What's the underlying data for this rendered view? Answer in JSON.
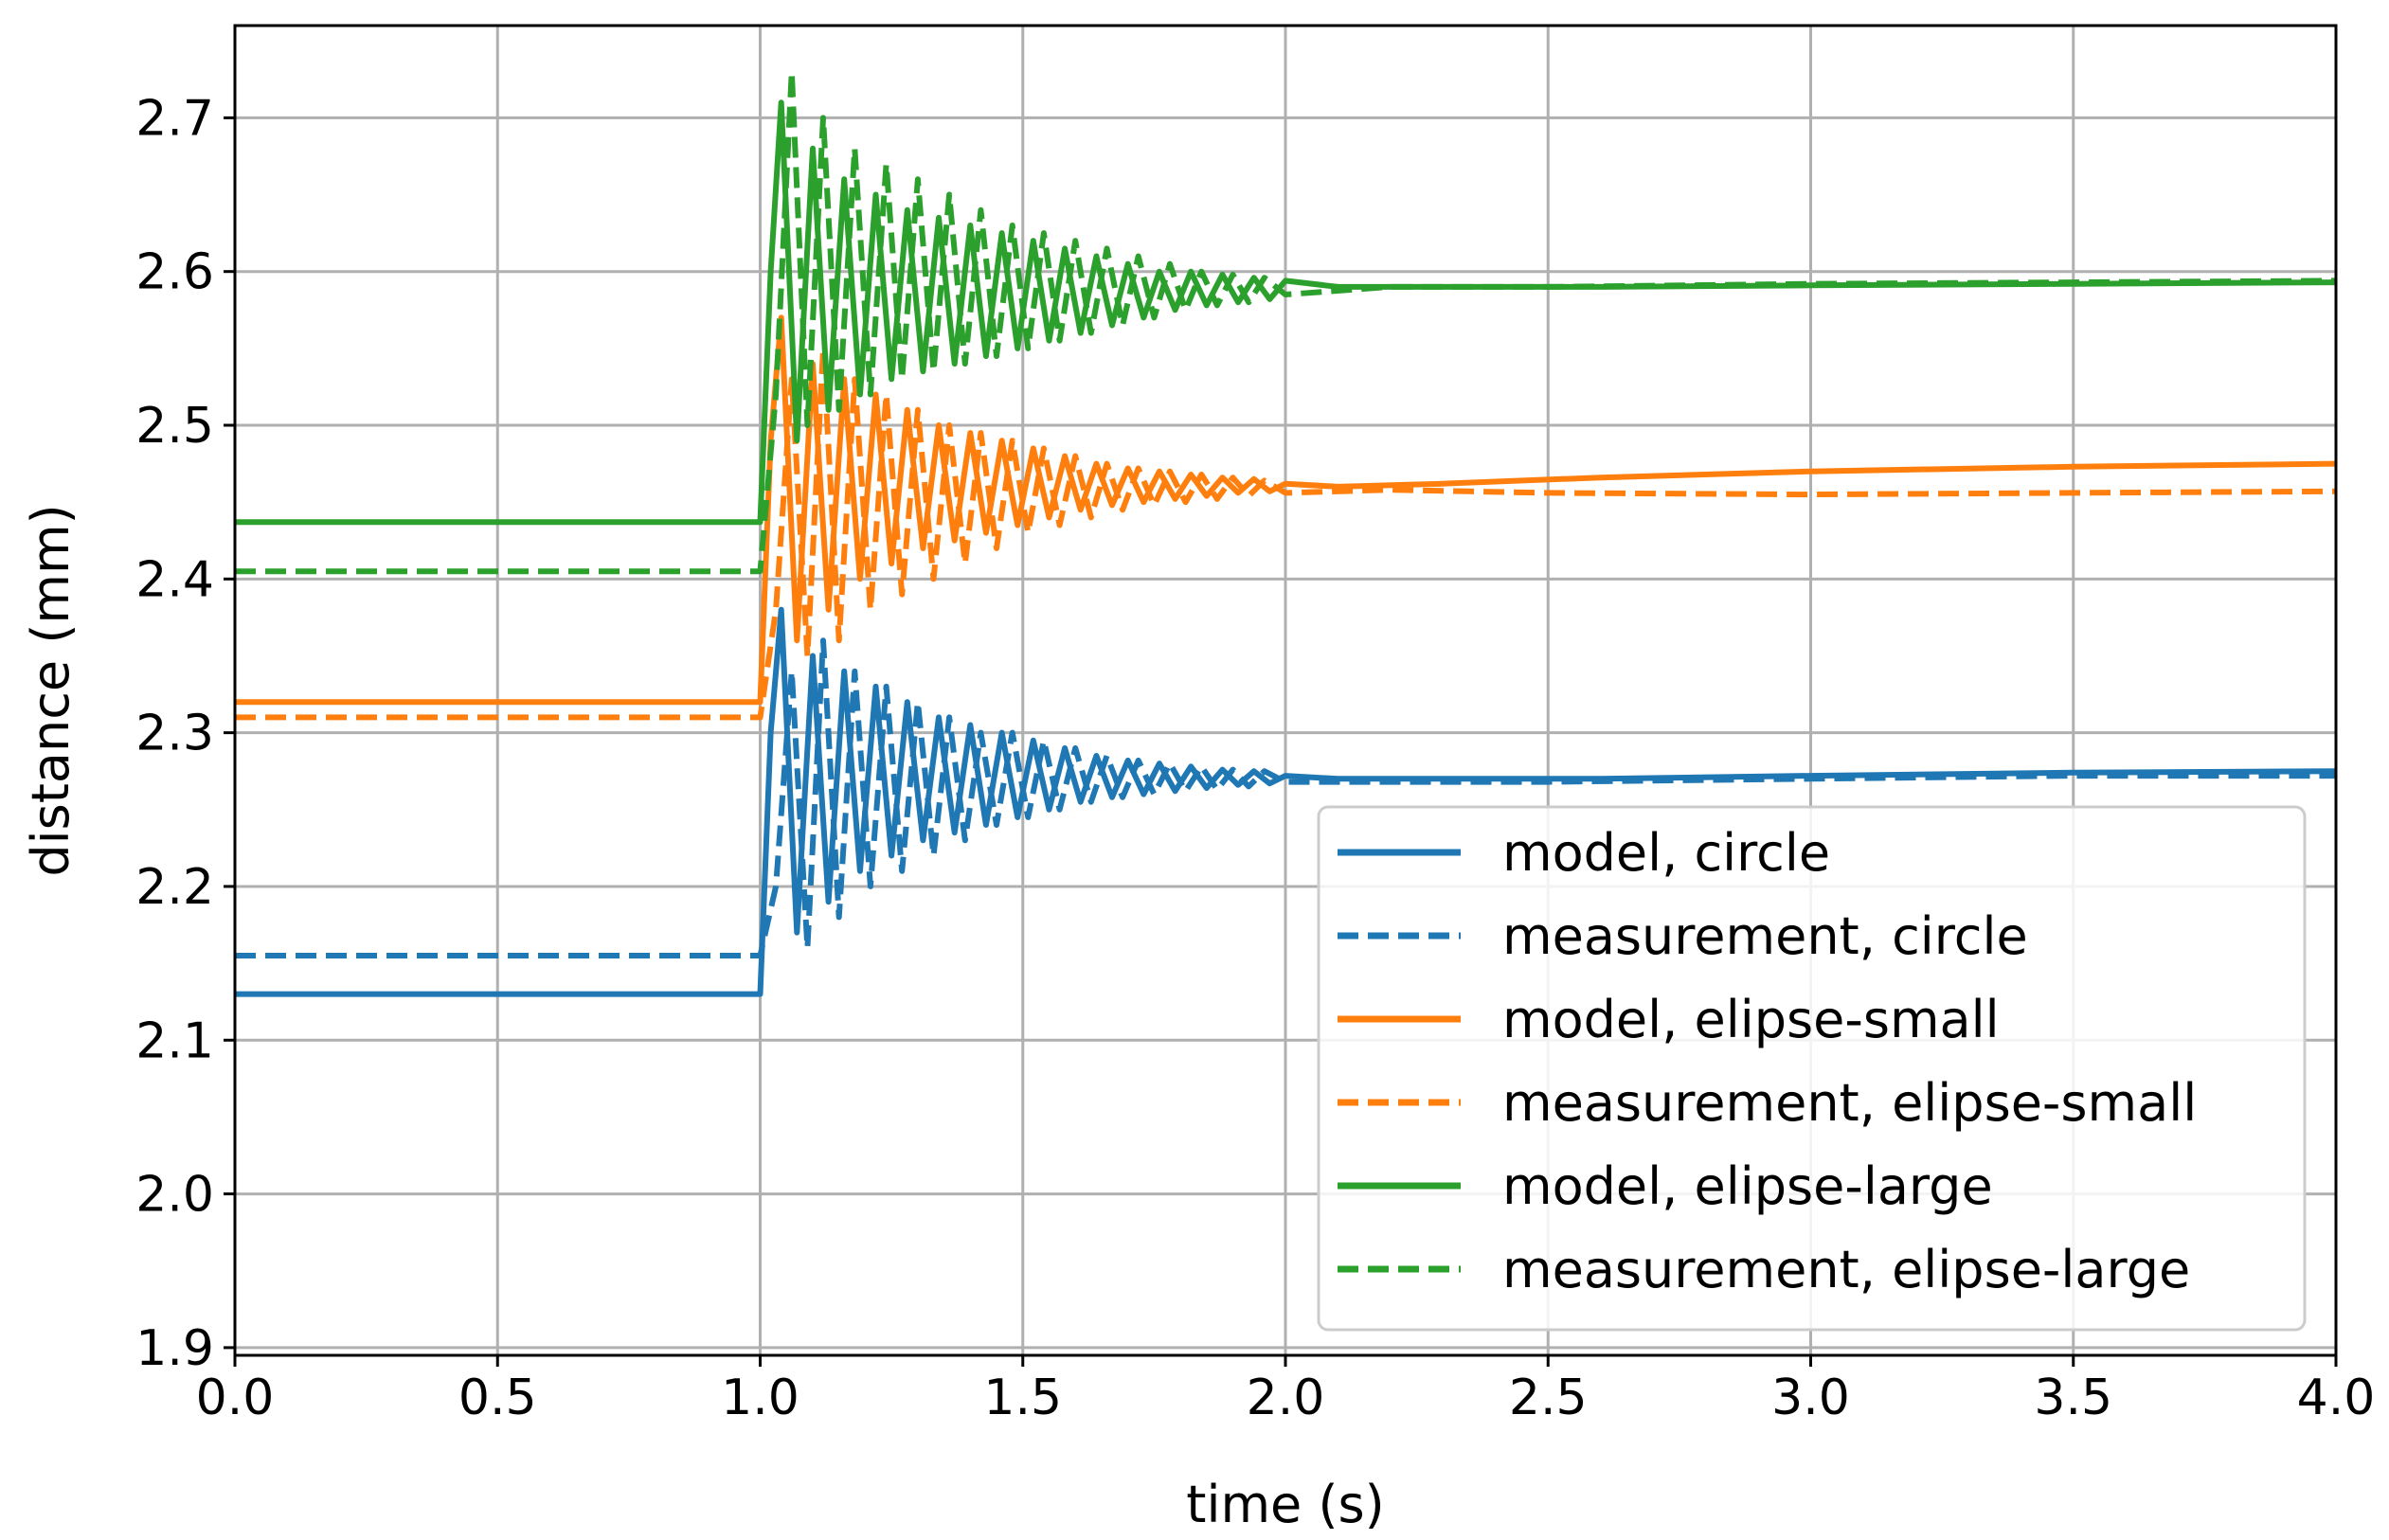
{
  "chart_data": {
    "type": "line",
    "title": "",
    "xlabel": "time (s)",
    "ylabel": "distance (mm)",
    "xlim": [
      0.0,
      4.0
    ],
    "ylim": [
      1.895,
      2.76
    ],
    "grid": true,
    "legend_position": "lower-right",
    "xticks": [
      0.0,
      0.5,
      1.0,
      1.5,
      2.0,
      2.5,
      3.0,
      3.5,
      4.0
    ],
    "yticks": [
      1.9,
      2.0,
      2.1,
      2.2,
      2.3,
      2.4,
      2.5,
      2.6,
      2.7
    ],
    "xtick_labels": [
      "0.0",
      "0.5",
      "1.0",
      "1.5",
      "2.0",
      "2.5",
      "3.0",
      "3.5",
      "4.0"
    ],
    "ytick_labels": [
      "1.9",
      "2.0",
      "2.1",
      "2.2",
      "2.3",
      "2.4",
      "2.5",
      "2.6",
      "2.7"
    ],
    "series": [
      {
        "name": "model, circle",
        "color": "#1f77b4",
        "style": "solid",
        "x": [
          0.0,
          1.0,
          1.02,
          1.04,
          1.07,
          1.1,
          1.13,
          1.16,
          1.19,
          1.22,
          1.25,
          1.28,
          1.31,
          1.34,
          1.37,
          1.4,
          1.43,
          1.46,
          1.49,
          1.52,
          1.55,
          1.58,
          1.61,
          1.64,
          1.67,
          1.7,
          1.73,
          1.76,
          1.79,
          1.82,
          1.85,
          1.88,
          1.91,
          1.94,
          1.97,
          2.0,
          2.1,
          2.2,
          2.4,
          2.6,
          3.0,
          3.5,
          4.0
        ],
        "y": [
          2.13,
          2.13,
          2.3,
          2.38,
          2.17,
          2.35,
          2.19,
          2.34,
          2.21,
          2.33,
          2.22,
          2.32,
          2.23,
          2.31,
          2.235,
          2.305,
          2.24,
          2.3,
          2.245,
          2.295,
          2.25,
          2.29,
          2.255,
          2.285,
          2.258,
          2.282,
          2.26,
          2.28,
          2.262,
          2.278,
          2.264,
          2.276,
          2.266,
          2.275,
          2.267,
          2.272,
          2.27,
          2.27,
          2.27,
          2.27,
          2.272,
          2.274,
          2.275
        ]
      },
      {
        "name": "measurement, circle",
        "color": "#1f77b4",
        "style": "dashed",
        "x": [
          0.0,
          1.0,
          1.03,
          1.06,
          1.09,
          1.12,
          1.15,
          1.18,
          1.21,
          1.24,
          1.27,
          1.3,
          1.33,
          1.36,
          1.39,
          1.42,
          1.45,
          1.48,
          1.51,
          1.54,
          1.57,
          1.6,
          1.63,
          1.66,
          1.69,
          1.72,
          1.75,
          1.78,
          1.81,
          1.84,
          1.87,
          1.9,
          1.93,
          1.96,
          2.0,
          2.2,
          2.5,
          3.0,
          3.5,
          4.0
        ],
        "y": [
          2.155,
          2.155,
          2.2,
          2.34,
          2.16,
          2.36,
          2.18,
          2.34,
          2.2,
          2.33,
          2.21,
          2.32,
          2.22,
          2.31,
          2.23,
          2.3,
          2.24,
          2.3,
          2.245,
          2.295,
          2.25,
          2.29,
          2.255,
          2.285,
          2.258,
          2.282,
          2.26,
          2.28,
          2.262,
          2.278,
          2.263,
          2.276,
          2.265,
          2.275,
          2.268,
          2.268,
          2.268,
          2.27,
          2.272,
          2.272
        ]
      },
      {
        "name": "model, elipse-small",
        "color": "#ff7f0e",
        "style": "solid",
        "x": [
          0.0,
          1.0,
          1.02,
          1.04,
          1.07,
          1.1,
          1.13,
          1.16,
          1.19,
          1.22,
          1.25,
          1.28,
          1.31,
          1.34,
          1.37,
          1.4,
          1.43,
          1.46,
          1.49,
          1.52,
          1.55,
          1.58,
          1.61,
          1.64,
          1.67,
          1.7,
          1.73,
          1.76,
          1.79,
          1.82,
          1.85,
          1.88,
          1.91,
          1.94,
          1.97,
          2.0,
          2.1,
          2.3,
          2.6,
          3.0,
          3.5,
          4.0
        ],
        "y": [
          2.32,
          2.32,
          2.49,
          2.57,
          2.36,
          2.54,
          2.38,
          2.53,
          2.4,
          2.52,
          2.41,
          2.51,
          2.42,
          2.5,
          2.425,
          2.495,
          2.43,
          2.49,
          2.435,
          2.485,
          2.44,
          2.48,
          2.445,
          2.475,
          2.448,
          2.472,
          2.45,
          2.47,
          2.452,
          2.468,
          2.454,
          2.466,
          2.456,
          2.465,
          2.457,
          2.462,
          2.46,
          2.462,
          2.466,
          2.47,
          2.473,
          2.475
        ]
      },
      {
        "name": "measurement, elipse-small",
        "color": "#ff7f0e",
        "style": "dashed",
        "x": [
          0.0,
          1.0,
          1.03,
          1.06,
          1.09,
          1.12,
          1.15,
          1.18,
          1.21,
          1.24,
          1.27,
          1.3,
          1.33,
          1.36,
          1.39,
          1.42,
          1.45,
          1.48,
          1.51,
          1.54,
          1.57,
          1.6,
          1.63,
          1.66,
          1.69,
          1.72,
          1.75,
          1.78,
          1.81,
          1.84,
          1.87,
          1.9,
          1.93,
          1.96,
          2.0,
          2.2,
          2.5,
          3.0,
          3.5,
          4.0
        ],
        "y": [
          2.31,
          2.31,
          2.38,
          2.53,
          2.35,
          2.55,
          2.36,
          2.53,
          2.38,
          2.52,
          2.39,
          2.51,
          2.4,
          2.5,
          2.41,
          2.495,
          2.42,
          2.49,
          2.43,
          2.485,
          2.435,
          2.48,
          2.44,
          2.475,
          2.445,
          2.472,
          2.448,
          2.47,
          2.45,
          2.468,
          2.452,
          2.466,
          2.454,
          2.464,
          2.456,
          2.458,
          2.456,
          2.455,
          2.456,
          2.457
        ]
      },
      {
        "name": "model, elipse-large",
        "color": "#2ca02c",
        "style": "solid",
        "x": [
          0.0,
          1.0,
          1.02,
          1.04,
          1.07,
          1.1,
          1.13,
          1.16,
          1.19,
          1.22,
          1.25,
          1.28,
          1.31,
          1.34,
          1.37,
          1.4,
          1.43,
          1.46,
          1.49,
          1.52,
          1.55,
          1.58,
          1.61,
          1.64,
          1.67,
          1.7,
          1.73,
          1.76,
          1.79,
          1.82,
          1.85,
          1.88,
          1.91,
          1.94,
          1.97,
          2.0,
          2.1,
          2.3,
          2.6,
          3.0,
          3.5,
          4.0
        ],
        "y": [
          2.437,
          2.437,
          2.6,
          2.71,
          2.49,
          2.68,
          2.51,
          2.66,
          2.52,
          2.65,
          2.53,
          2.64,
          2.535,
          2.635,
          2.54,
          2.63,
          2.545,
          2.625,
          2.55,
          2.62,
          2.555,
          2.615,
          2.56,
          2.61,
          2.565,
          2.605,
          2.57,
          2.6,
          2.575,
          2.6,
          2.578,
          2.598,
          2.58,
          2.596,
          2.582,
          2.594,
          2.59,
          2.59,
          2.59,
          2.591,
          2.592,
          2.593
        ]
      },
      {
        "name": "measurement, elipse-large",
        "color": "#2ca02c",
        "style": "dashed",
        "x": [
          0.0,
          1.0,
          1.03,
          1.06,
          1.09,
          1.12,
          1.15,
          1.18,
          1.21,
          1.24,
          1.27,
          1.3,
          1.33,
          1.36,
          1.39,
          1.42,
          1.45,
          1.48,
          1.51,
          1.54,
          1.57,
          1.6,
          1.63,
          1.66,
          1.69,
          1.72,
          1.75,
          1.78,
          1.81,
          1.84,
          1.87,
          1.9,
          1.93,
          1.96,
          2.0,
          2.2,
          2.5,
          3.0,
          3.5,
          4.0
        ],
        "y": [
          2.405,
          2.405,
          2.52,
          2.73,
          2.5,
          2.7,
          2.51,
          2.68,
          2.52,
          2.67,
          2.53,
          2.66,
          2.535,
          2.65,
          2.54,
          2.64,
          2.545,
          2.63,
          2.55,
          2.625,
          2.555,
          2.62,
          2.56,
          2.615,
          2.565,
          2.61,
          2.57,
          2.605,
          2.575,
          2.6,
          2.578,
          2.598,
          2.58,
          2.596,
          2.585,
          2.59,
          2.59,
          2.592,
          2.593,
          2.594
        ]
      }
    ]
  }
}
